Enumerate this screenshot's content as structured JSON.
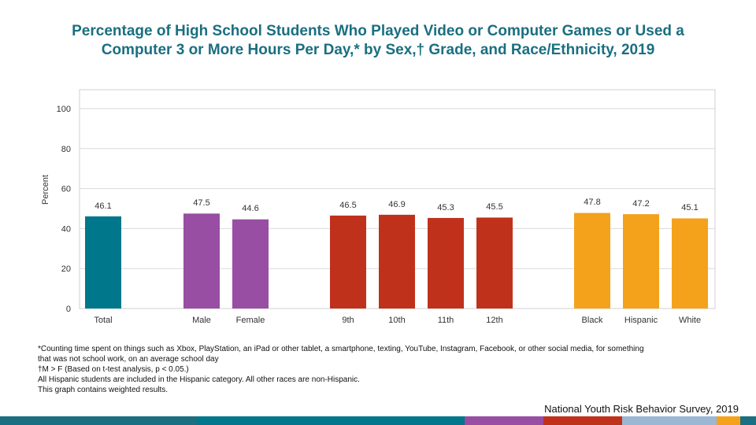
{
  "title_lines": [
    "Percentage of High School Students Who Played Video or Computer Games or Used a",
    "Computer 3 or More Hours Per Day,* by Sex,† Grade, and Race/Ethnicity, 2019"
  ],
  "chart_data": {
    "type": "bar",
    "ylabel": "Percent",
    "ylim": [
      0,
      100
    ],
    "yticks": [
      "0",
      "20",
      "40",
      "60",
      "80",
      "100"
    ],
    "categories": [
      "Total",
      "Male",
      "Female",
      "9th",
      "10th",
      "11th",
      "12th",
      "Black",
      "Hispanic",
      "White"
    ],
    "values": [
      46.1,
      47.5,
      44.6,
      46.5,
      46.9,
      45.3,
      45.5,
      47.8,
      47.2,
      45.1
    ],
    "value_labels": [
      "46.1",
      "47.5",
      "44.6",
      "46.5",
      "46.9",
      "45.3",
      "45.5",
      "47.8",
      "47.2",
      "45.1"
    ],
    "colors": [
      "#00778b",
      "#984ea3",
      "#984ea3",
      "#c0311c",
      "#c0311c",
      "#c0311c",
      "#c0311c",
      "#f4a21c",
      "#f4a21c",
      "#f4a21c"
    ],
    "grid": true
  },
  "footnotes": [
    "*Counting time spent on things such as Xbox, PlayStation, an iPad or other tablet, a smartphone, texting, YouTube, Instagram, Facebook, or other social media, for something",
    "that was not school work, on an average school day",
    "†M > F (Based on t-test analysis, p < 0.05.)",
    "All Hispanic students are included in the Hispanic category.  All other races are non-Hispanic.",
    "This graph contains weighted results."
  ],
  "source": "National Youth Risk Behavior Survey, 2019",
  "footer_band_colors": [
    "#1a6f80",
    "#00778b",
    "#984ea3",
    "#c0311c",
    "#9bb7d4",
    "#f4a21c",
    "#1a6f80"
  ]
}
